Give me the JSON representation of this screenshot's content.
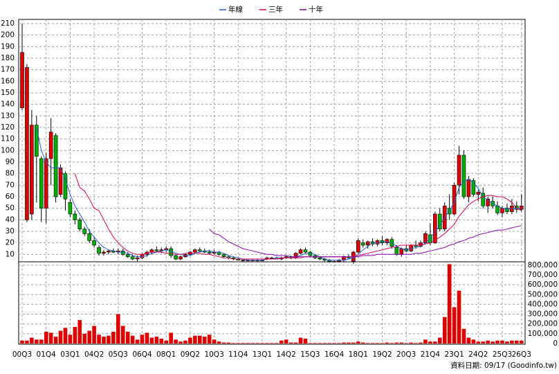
{
  "chart_data": [
    {
      "type": "candlestick",
      "legend": "top",
      "grid": true,
      "up_color": "#e00000",
      "down_color": "#00b000",
      "note": "資料日期: 09/17 (Goodinfo.tw)",
      "categories": [
        "00Q3",
        null,
        null,
        null,
        null,
        "01Q4",
        null,
        null,
        null,
        null,
        "03Q1",
        null,
        null,
        null,
        null,
        "04Q2",
        null,
        null,
        null,
        null,
        "05Q3",
        null,
        null,
        null,
        null,
        "06Q4",
        null,
        null,
        null,
        null,
        "08Q1",
        null,
        null,
        null,
        null,
        "09Q2",
        null,
        null,
        null,
        null,
        "10Q3",
        null,
        null,
        null,
        null,
        "11Q4",
        null,
        null,
        null,
        null,
        "13Q1",
        null,
        null,
        null,
        null,
        "14Q2",
        null,
        null,
        null,
        null,
        "15Q3",
        null,
        null,
        null,
        null,
        "16Q4",
        null,
        null,
        null,
        null,
        "18Q1",
        null,
        null,
        null,
        null,
        "19Q2",
        null,
        null,
        null,
        null,
        "20Q3",
        null,
        null,
        null,
        null,
        "21Q4",
        null,
        null,
        null,
        null,
        "23Q1",
        null,
        null,
        null,
        null,
        "24Q2",
        null,
        null,
        null,
        null,
        "25Q3",
        null,
        null,
        null,
        "26Q3"
      ],
      "open": [
        137,
        40,
        45,
        122,
        93,
        50,
        93,
        113,
        62,
        80,
        55,
        45,
        40,
        32,
        28,
        22,
        16,
        11,
        12,
        13,
        12,
        13,
        10,
        8,
        6,
        7,
        10,
        12,
        14,
        13,
        14,
        15,
        9,
        6,
        8,
        10,
        12,
        14,
        13,
        12,
        11,
        12,
        10,
        8,
        7,
        6,
        5,
        5,
        5,
        5,
        5,
        6,
        7,
        7,
        6,
        7,
        8,
        7,
        11,
        14,
        12,
        9,
        7,
        6,
        5,
        4,
        4,
        5,
        8,
        4,
        12,
        20,
        18,
        21,
        19,
        22,
        20,
        23,
        16,
        10,
        15,
        13,
        18,
        17,
        20,
        27,
        20,
        45,
        32,
        50,
        45,
        70,
        96,
        60,
        74,
        62,
        63,
        52,
        56,
        52,
        46,
        50,
        47,
        52,
        49
      ],
      "high": [
        210,
        175,
        135,
        130,
        95,
        98,
        128,
        115,
        88,
        82,
        58,
        48,
        42,
        34,
        32,
        25,
        18,
        14,
        14,
        15,
        15,
        15,
        12,
        10,
        9,
        11,
        13,
        15,
        17,
        16,
        17,
        17,
        10,
        9,
        11,
        13,
        15,
        16,
        15,
        14,
        14,
        13,
        11,
        9,
        8,
        7,
        6,
        6,
        6,
        6,
        6,
        8,
        8,
        8,
        8,
        9,
        9,
        12,
        15,
        16,
        13,
        10,
        8,
        7,
        6,
        5,
        6,
        9,
        10,
        13,
        24,
        23,
        22,
        24,
        23,
        26,
        24,
        25,
        18,
        16,
        18,
        19,
        22,
        22,
        30,
        37,
        47,
        50,
        55,
        62,
        72,
        104,
        100,
        78,
        76,
        66,
        68,
        60,
        60,
        56,
        52,
        54,
        58,
        56,
        62
      ],
      "low": [
        135,
        38,
        40,
        55,
        38,
        37,
        70,
        55,
        60,
        48,
        42,
        36,
        30,
        26,
        20,
        16,
        9,
        9,
        10,
        11,
        10,
        9,
        7,
        5,
        4,
        6,
        8,
        10,
        12,
        11,
        12,
        7,
        5,
        5,
        7,
        9,
        11,
        12,
        11,
        10,
        10,
        9,
        7,
        6,
        5,
        5,
        4,
        4,
        4,
        4,
        4,
        5,
        6,
        6,
        5,
        6,
        6,
        6,
        10,
        11,
        8,
        6,
        5,
        4,
        3,
        3,
        3,
        3,
        6,
        2,
        11,
        16,
        15,
        17,
        17,
        18,
        18,
        15,
        9,
        8,
        12,
        12,
        15,
        16,
        19,
        18,
        19,
        30,
        30,
        40,
        44,
        62,
        58,
        55,
        60,
        56,
        50,
        46,
        50,
        44,
        42,
        45,
        45,
        46,
        47
      ],
      "close": [
        185,
        172,
        122,
        95,
        50,
        93,
        116,
        60,
        85,
        58,
        45,
        40,
        32,
        28,
        22,
        18,
        11,
        12,
        13,
        12,
        13,
        10,
        8,
        6,
        7,
        10,
        12,
        14,
        13,
        14,
        15,
        9,
        6,
        8,
        10,
        12,
        14,
        13,
        12,
        11,
        12,
        10,
        8,
        7,
        6,
        5,
        5,
        5,
        5,
        5,
        5,
        7,
        7,
        6,
        7,
        8,
        7,
        11,
        14,
        12,
        9,
        7,
        6,
        5,
        4,
        4,
        5,
        8,
        7,
        12,
        22,
        18,
        21,
        19,
        22,
        20,
        23,
        17,
        10,
        15,
        13,
        18,
        17,
        20,
        28,
        20,
        45,
        32,
        52,
        45,
        70,
        96,
        60,
        75,
        62,
        64,
        52,
        58,
        52,
        46,
        50,
        47,
        52,
        49,
        52
      ],
      "series": [
        {
          "name": "年線",
          "color": "#1f5fd0",
          "values": [
            null,
            null,
            null,
            120,
            100,
            90,
            85,
            85,
            85,
            75,
            62,
            52,
            45,
            38,
            30,
            25,
            20,
            16,
            14,
            13,
            12,
            12,
            11,
            9,
            8,
            8,
            9,
            11,
            12,
            13,
            14,
            13,
            11,
            10,
            9,
            9,
            11,
            12,
            13,
            13,
            12,
            12,
            11,
            9,
            8,
            7,
            6,
            5,
            5,
            5,
            5,
            6,
            6,
            7,
            7,
            7,
            7,
            8,
            9,
            11,
            11,
            10,
            8,
            6,
            5,
            5,
            5,
            5,
            6,
            7,
            10,
            14,
            17,
            20,
            20,
            21,
            21,
            20,
            17,
            15,
            14,
            15,
            16,
            17,
            20,
            24,
            30,
            35,
            42,
            48,
            55,
            68,
            73,
            75,
            72,
            67,
            60,
            57,
            54,
            52,
            50,
            49,
            50,
            50,
            50
          ]
        },
        {
          "name": "三年",
          "color": "#d8005a",
          "values": [
            null,
            null,
            null,
            null,
            null,
            null,
            null,
            null,
            null,
            null,
            null,
            80,
            68,
            65,
            58,
            50,
            48,
            40,
            32,
            25,
            20,
            16,
            13,
            11,
            10,
            10,
            11,
            12,
            12,
            12,
            11,
            11,
            10,
            10,
            11,
            11,
            11,
            11,
            10,
            10,
            9,
            8,
            7,
            7,
            6,
            6,
            6,
            6,
            6,
            6,
            6,
            6,
            6,
            6,
            7,
            7,
            7,
            7,
            7,
            8,
            8,
            8,
            8,
            8,
            8,
            8,
            8,
            8,
            8,
            8,
            9,
            10,
            11,
            12,
            13,
            14,
            15,
            16,
            17,
            18,
            18,
            18,
            18,
            18,
            19,
            20,
            22,
            25,
            28,
            32,
            36,
            43,
            48,
            53,
            56,
            58,
            60,
            61,
            61,
            60,
            60,
            58,
            55,
            50,
            48
          ]
        },
        {
          "name": "十年",
          "color": "#8a00b0",
          "values": [
            null,
            null,
            null,
            null,
            null,
            null,
            null,
            null,
            null,
            null,
            null,
            null,
            null,
            null,
            null,
            null,
            null,
            null,
            null,
            null,
            null,
            null,
            null,
            null,
            null,
            null,
            null,
            null,
            null,
            null,
            null,
            null,
            null,
            null,
            null,
            null,
            null,
            null,
            null,
            32,
            28,
            27,
            24,
            21,
            19,
            17,
            15,
            14,
            13,
            12,
            11,
            10,
            10,
            9,
            9,
            9,
            8,
            8,
            8,
            8,
            8,
            8,
            8,
            8,
            8,
            8,
            8,
            8,
            8,
            8,
            8,
            9,
            9,
            9,
            10,
            10,
            10,
            10,
            10,
            10,
            10,
            10,
            11,
            11,
            12,
            13,
            14,
            15,
            16,
            18,
            19,
            21,
            22,
            24,
            25,
            27,
            28,
            29,
            30,
            31,
            31,
            32,
            33,
            34,
            35
          ]
        }
      ],
      "ylim": [
        0,
        213
      ],
      "yticks": [
        10,
        20,
        30,
        40,
        50,
        60,
        70,
        80,
        90,
        100,
        110,
        120,
        130,
        140,
        150,
        160,
        170,
        180,
        190,
        200,
        210
      ]
    },
    {
      "type": "bar",
      "color": "#e00000",
      "grid": true,
      "values": [
        30000,
        30000,
        60000,
        40000,
        40000,
        120000,
        110000,
        70000,
        130000,
        160000,
        90000,
        170000,
        240000,
        100000,
        130000,
        180000,
        90000,
        70000,
        80000,
        120000,
        300000,
        180000,
        120000,
        80000,
        40000,
        90000,
        110000,
        60000,
        70000,
        50000,
        30000,
        110000,
        40000,
        20000,
        30000,
        60000,
        80000,
        80000,
        70000,
        90000,
        40000,
        20000,
        10000,
        10000,
        5000,
        5000,
        5000,
        5000,
        5000,
        5000,
        5000,
        5000,
        5000,
        5000,
        30000,
        40000,
        10000,
        10000,
        60000,
        50000,
        5000,
        5000,
        5000,
        5000,
        5000,
        5000,
        5000,
        10000,
        10000,
        10000,
        20000,
        10000,
        5000,
        5000,
        5000,
        5000,
        10000,
        5000,
        10000,
        10000,
        5000,
        10000,
        5000,
        10000,
        40000,
        20000,
        20000,
        60000,
        270000,
        810000,
        370000,
        540000,
        150000,
        60000,
        40000,
        20000,
        20000,
        30000,
        20000,
        30000,
        30000,
        20000,
        30000,
        30000,
        30000
      ],
      "ylim": [
        0,
        820000
      ],
      "yticks": [
        0,
        {
          "value": 100000,
          "label": "100,000"
        },
        {
          "value": 200000,
          "label": "200,000"
        },
        {
          "value": 300000,
          "label": "300,000"
        },
        {
          "value": 400000,
          "label": "400,000"
        },
        {
          "value": 500000,
          "label": "500,000"
        },
        {
          "value": 600000,
          "label": "600,000"
        },
        {
          "value": 700000,
          "label": "700,000"
        },
        {
          "value": 800000,
          "label": "800,000"
        }
      ]
    }
  ]
}
